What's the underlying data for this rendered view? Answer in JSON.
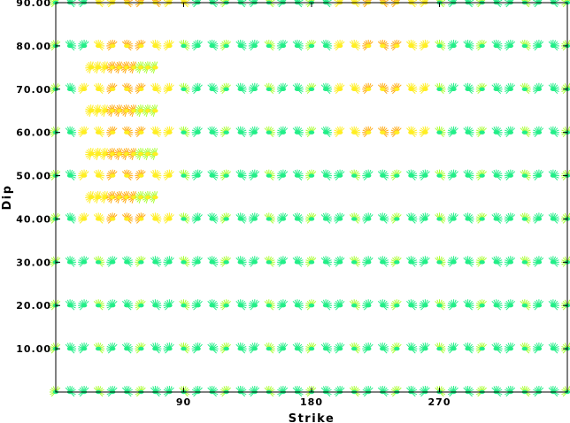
{
  "chart_data": {
    "type": "scatter",
    "xlabel": "Strike",
    "ylabel": "Dip",
    "xlim": [
      0,
      360
    ],
    "ylim": [
      0,
      90
    ],
    "x_ticks": [
      90,
      180,
      270
    ],
    "x_tick_labels": [
      "90",
      "180",
      "270"
    ],
    "y_ticks": [
      10,
      20,
      30,
      40,
      50,
      60,
      70,
      80,
      90
    ],
    "y_tick_labels": [
      "10.00",
      "20.00",
      "30.00",
      "40.00",
      "50.00",
      "60.00",
      "70.00",
      "80.00",
      "90.00"
    ],
    "grid": false,
    "legend": "none",
    "marker": "focal-mechanism-fan",
    "colors": {
      "low_fit": "#22ee88",
      "mid_fit": "#aaff33",
      "high_fit": "#ffee22",
      "best_fit": "#ffaa11",
      "frame": "#000000"
    },
    "main_rows": {
      "strike_start": 0,
      "strike_step": 10,
      "strike_end": 360,
      "dips": [
        0,
        10,
        20,
        30,
        40,
        50,
        60,
        70,
        80,
        90
      ],
      "high_fit_strike_ranges": [
        {
          "dip": 40,
          "ranges": [
            [
              20,
              80
            ]
          ]
        },
        {
          "dip": 50,
          "ranges": [
            [
              20,
              80
            ]
          ]
        },
        {
          "dip": 60,
          "ranges": [
            [
              20,
              80
            ],
            [
              200,
              260
            ]
          ]
        },
        {
          "dip": 70,
          "ranges": [
            [
              20,
              80
            ],
            [
              200,
              260
            ]
          ]
        },
        {
          "dip": 80,
          "ranges": [
            [
              25,
              80
            ],
            [
              200,
              260
            ]
          ]
        },
        {
          "dip": 90,
          "ranges": [
            [
              30,
              90
            ],
            [
              200,
              260
            ]
          ]
        }
      ]
    },
    "detail_rows": {
      "dips": [
        45,
        55,
        65,
        75
      ],
      "strike_start": 25,
      "strike_end": 70,
      "strike_step": 5
    }
  }
}
